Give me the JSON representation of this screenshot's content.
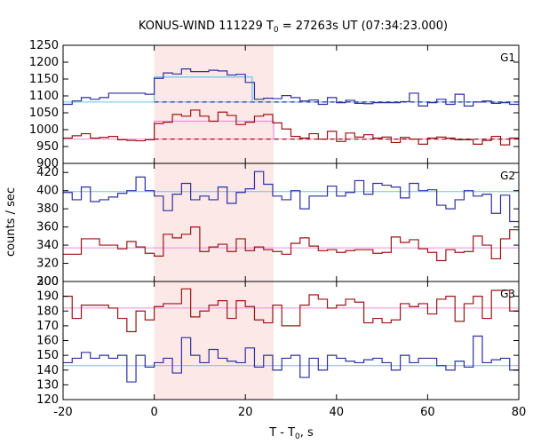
{
  "chart_data": {
    "type": "line",
    "title_main": "KONUS-WIND 111229 T",
    "title_sub": "0",
    "title_rest": " = 27263s UT (07:34:23.000)",
    "xlabel_main": "T - T",
    "xlabel_sub": "0",
    "xlabel_rest": ", s",
    "ylabel": "counts / sec",
    "xlim": [
      -20,
      80
    ],
    "x_ticks": [
      -20,
      0,
      20,
      40,
      60,
      80
    ],
    "shaded_interval": [
      0,
      26.2
    ],
    "bin_edges": [
      -20,
      -18,
      -16,
      -14,
      -12,
      -10,
      -8,
      -6,
      -4,
      -2,
      0,
      2,
      4,
      6,
      8,
      10,
      12,
      14,
      16,
      18,
      20,
      22,
      24,
      26,
      28,
      30,
      32,
      34,
      36,
      38,
      40,
      42,
      44,
      46,
      48,
      50,
      52,
      54,
      56,
      58,
      60,
      62,
      64,
      66,
      68,
      70,
      72,
      74,
      76,
      78,
      80
    ],
    "panels": [
      {
        "label": "G1",
        "ylim": [
          900,
          1250
        ],
        "y_ticks": [
          900,
          950,
          1000,
          1050,
          1100,
          1150,
          1200,
          1250
        ],
        "series": [
          {
            "color": "#2f2fa2",
            "values": [
              1075,
              1085,
              1095,
              1090,
              1095,
              1108,
              1108,
              1108,
              1108,
              1105,
              1152,
              1168,
              1165,
              1180,
              1172,
              1172,
              1176,
              1174,
              1162,
              1164,
              1140,
              1090,
              1093,
              1092,
              1101,
              1095,
              1085,
              1088,
              1075,
              1095,
              1080,
              1087,
              1078,
              1077,
              1080,
              1080,
              1080,
              1083,
              1108,
              1070,
              1080,
              1090,
              1075,
              1105,
              1070,
              1082,
              1085,
              1078,
              1080,
              1075
            ],
            "fit": {
              "level": 1082,
              "color": "#5ec9e8"
            },
            "step_fit": {
              "x_start": 0,
              "x_end": 21.5,
              "level": 1156,
              "color": "#5ec9e8"
            },
            "background": {
              "level": 1082,
              "color": "#2f2fa2"
            }
          },
          {
            "color": "#9b1515",
            "values": [
              975,
              982,
              988,
              975,
              977,
              980,
              970,
              968,
              967,
              970,
              1018,
              1022,
              1045,
              1040,
              1058,
              1040,
              1025,
              1052,
              1042,
              1015,
              1022,
              1040,
              1045,
              1020,
              1002,
              980,
              975,
              988,
              972,
              995,
              965,
              990,
              978,
              985,
              975,
              978,
              962,
              977,
              972,
              957,
              975,
              978,
              975,
              970,
              970,
              957,
              968,
              980,
              955,
              975
            ],
            "fit": {
              "level": 972,
              "color": "#f08ce0"
            },
            "step_fit": {
              "x_start": 0,
              "x_end": 26.2,
              "level": 1025,
              "color": "#f08ce0"
            },
            "background": {
              "level": 972,
              "color": "#9b1515"
            }
          }
        ]
      },
      {
        "label": "G2",
        "ylim": [
          300,
          430
        ],
        "y_ticks": [
          300,
          320,
          340,
          360,
          380,
          400,
          420
        ],
        "series": [
          {
            "color": "#2f2fa2",
            "values": [
              398,
              390,
              404,
              388,
              390,
              393,
              397,
              400,
              415,
              400,
              394,
              378,
              396,
              408,
              390,
              394,
              390,
              404,
              386,
              398,
              402,
              421,
              407,
              394,
              390,
              400,
              380,
              394,
              394,
              405,
              394,
              398,
              411,
              396,
              408,
              406,
              404,
              392,
              408,
              400,
              401,
              384,
              380,
              390,
              400,
              394,
              396,
              375,
              395,
              366
            ],
            "fit": {
              "level": 399,
              "color": "#5ec9e8"
            }
          },
          {
            "color": "#9b1515",
            "values": [
              330,
              330,
              347,
              347,
              340,
              340,
              336,
              344,
              338,
              331,
              328,
              352,
              348,
              352,
              360,
              333,
              338,
              341,
              333,
              347,
              334,
              338,
              335,
              333,
              330,
              342,
              348,
              339,
              334,
              335,
              332,
              334,
              335,
              335,
              331,
              332,
              349,
              343,
              346,
              336,
              332,
              323,
              335,
              332,
              333,
              350,
              340,
              325,
              347,
              357
            ],
            "fit": {
              "level": 337,
              "color": "#f08ce0"
            }
          }
        ]
      },
      {
        "label": "G3",
        "ylim": [
          120,
          200
        ],
        "y_ticks": [
          120,
          130,
          140,
          150,
          160,
          170,
          180,
          190,
          200
        ],
        "series": [
          {
            "color": "#9b1515",
            "values": [
              190,
              175,
              184,
              184,
              184,
              182,
              175,
              166,
              180,
              174,
              183,
              185,
              185,
              195,
              176,
              180,
              184,
              187,
              175,
              187,
              183,
              174,
              172,
              184,
              170,
              170,
              184,
              191,
              188,
              182,
              184,
              188,
              186,
              172,
              175,
              172,
              174,
              185,
              183,
              185,
              178,
              188,
              190,
              173,
              185,
              190,
              175,
              194,
              194,
              180
            ],
            "fit": {
              "level": 182,
              "color": "#f08ce0"
            }
          },
          {
            "color": "#2f2fa2",
            "values": [
              145,
              148,
              152,
              148,
              150,
              148,
              150,
              132,
              150,
              142,
              145,
              148,
              138,
              162,
              150,
              145,
              154,
              148,
              146,
              145,
              155,
              142,
              150,
              140,
              148,
              150,
              135,
              148,
              140,
              150,
              148,
              146,
              145,
              147,
              148,
              145,
              140,
              150,
              145,
              148,
              148,
              143,
              140,
              146,
              142,
              163,
              145,
              147,
              148,
              140
            ],
            "fit": {
              "level": 143,
              "color": "#5ec9e8"
            }
          }
        ]
      }
    ]
  }
}
